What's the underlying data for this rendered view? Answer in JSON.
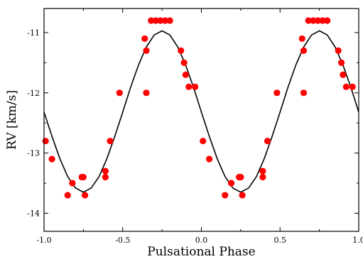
{
  "chart_data": {
    "type": "scatter",
    "title": "",
    "xlabel": "Pulsational Phase",
    "ylabel": "RV [km/s]",
    "xlim": [
      -1.0,
      1.0
    ],
    "ylim": [
      -14.3,
      -10.6
    ],
    "x_ticks": [
      -1.0,
      -0.5,
      0.0,
      0.5,
      1.0
    ],
    "x_tick_labels": [
      "-1.0",
      "-0.5",
      "0.0",
      "0.5",
      "1.0"
    ],
    "y_ticks": [
      -14,
      -13,
      -12,
      -11
    ],
    "y_tick_labels": [
      "-14",
      "-13",
      "-12",
      "-11"
    ],
    "grid": false,
    "legend": "none",
    "colors": {
      "points": "#ff0000",
      "curve": "#000000",
      "axes": "#000000"
    },
    "series": [
      {
        "kind": "points",
        "x": [
          -0.99,
          -0.95,
          -0.85,
          -0.82,
          -0.76,
          -0.75,
          -0.74,
          -0.61,
          -0.61,
          -0.58,
          -0.52,
          -0.36,
          -0.35,
          -0.35,
          -0.32,
          -0.29,
          -0.26,
          -0.23,
          -0.2,
          -0.13,
          -0.11,
          -0.1,
          -0.08,
          -0.04,
          0.01,
          0.05,
          0.15,
          0.19,
          0.24,
          0.25,
          0.26,
          0.39,
          0.39,
          0.42,
          0.48,
          0.64,
          0.65,
          0.65,
          0.68,
          0.71,
          0.74,
          0.77,
          0.8,
          0.87,
          0.89,
          0.9,
          0.92,
          0.96
        ],
        "y": [
          -12.8,
          -13.1,
          -13.7,
          -13.5,
          -13.4,
          -13.4,
          -13.7,
          -13.3,
          -13.4,
          -12.8,
          -12.0,
          -11.1,
          -11.3,
          -12.0,
          -10.8,
          -10.8,
          -10.8,
          -10.8,
          -10.8,
          -11.3,
          -11.5,
          -11.7,
          -11.9,
          -11.9,
          -12.8,
          -13.1,
          -13.7,
          -13.5,
          -13.4,
          -13.4,
          -13.7,
          -13.3,
          -13.4,
          -12.8,
          -12.0,
          -11.1,
          -11.3,
          -12.0,
          -10.8,
          -10.8,
          -10.8,
          -10.8,
          -10.8,
          -11.3,
          -11.5,
          -11.7,
          -11.9,
          -11.9
        ]
      },
      {
        "kind": "curve",
        "x": [
          -1.0,
          -0.95,
          -0.9,
          -0.85,
          -0.8,
          -0.75,
          -0.7,
          -0.65,
          -0.6,
          -0.55,
          -0.5,
          -0.45,
          -0.4,
          -0.35,
          -0.3,
          -0.25,
          -0.2,
          -0.15,
          -0.1,
          -0.05,
          0.0,
          0.05,
          0.1,
          0.15,
          0.2,
          0.25,
          0.3,
          0.35,
          0.4,
          0.45,
          0.5,
          0.55,
          0.6,
          0.65,
          0.7,
          0.75,
          0.8,
          0.85,
          0.9,
          0.95,
          1.0
        ],
        "y": [
          -12.32,
          -12.72,
          -13.09,
          -13.39,
          -13.58,
          -13.65,
          -13.58,
          -13.39,
          -13.09,
          -12.72,
          -12.32,
          -11.91,
          -11.54,
          -11.24,
          -11.04,
          -10.97,
          -11.04,
          -11.24,
          -11.54,
          -11.91,
          -12.32,
          -12.72,
          -13.09,
          -13.39,
          -13.58,
          -13.65,
          -13.58,
          -13.39,
          -13.09,
          -12.72,
          -12.32,
          -11.91,
          -11.54,
          -11.24,
          -11.04,
          -10.97,
          -11.04,
          -11.24,
          -11.54,
          -11.91,
          -12.32
        ]
      }
    ]
  }
}
